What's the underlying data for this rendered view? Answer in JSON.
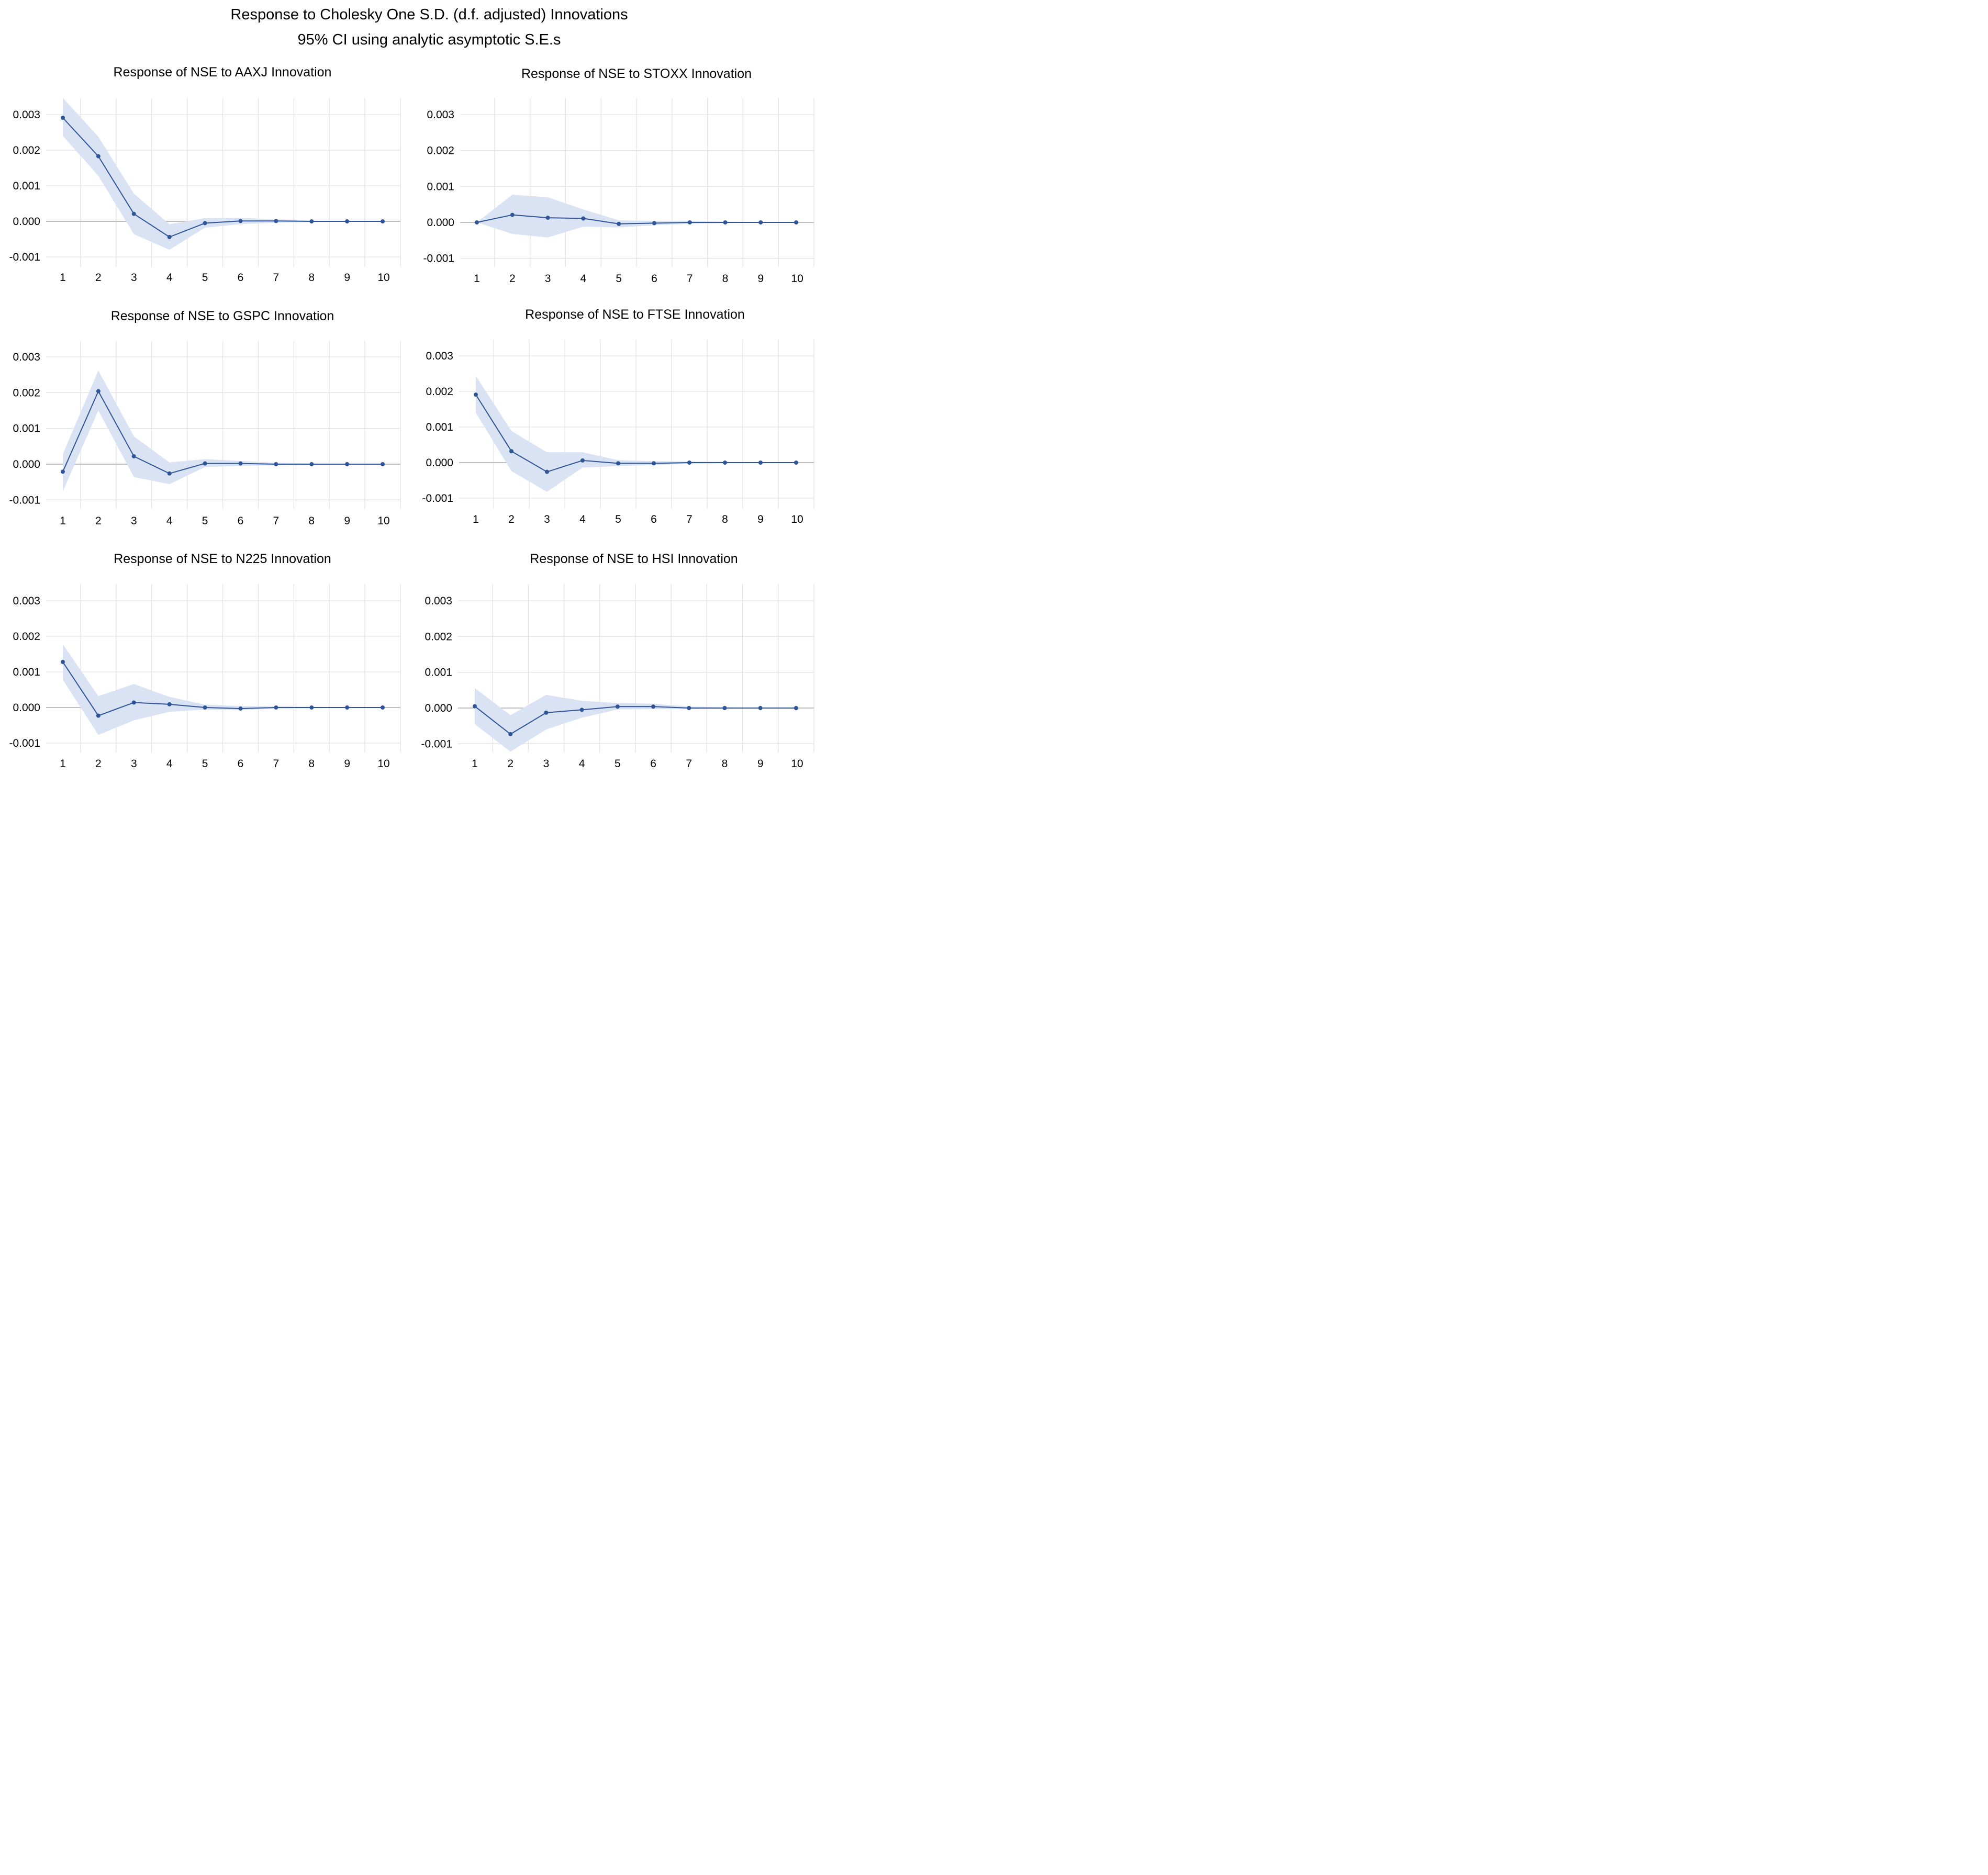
{
  "figure": {
    "title": "Response to Cholesky One S.D. (d.f. adjusted) Innovations",
    "subtitle": "95% CI using analytic asymptotic S.E.s"
  },
  "colors": {
    "line": "#2f5597",
    "band": "#dae3f3",
    "grid": "#e3e3e3",
    "zero_line": "#bfbfbf",
    "text": "#000000"
  },
  "chart_data": [
    {
      "type": "line",
      "title": "Response of NSE to AAXJ Innovation",
      "x": [
        1,
        2,
        3,
        4,
        5,
        6,
        7,
        8,
        9,
        10
      ],
      "ylim": [
        -0.0013,
        0.0035
      ],
      "yticks": [
        "0.003",
        "0.002",
        "0.001",
        "0.000",
        "-0.001"
      ],
      "ytick_values": [
        0.003,
        0.002,
        0.001,
        0.0,
        -0.001
      ],
      "series": [
        {
          "name": "Response",
          "values": [
            0.00291,
            0.00183,
            0.00021,
            -0.00044,
            -5e-05,
            1e-05,
            1e-05,
            0.0,
            0.0,
            0.0
          ]
        },
        {
          "name": "Upper 95% CI",
          "values": [
            0.00347,
            0.00238,
            0.00078,
            -8e-05,
            9e-05,
            0.0001,
            6e-05,
            2e-05,
            1e-05,
            0.0
          ]
        },
        {
          "name": "Lower 95% CI",
          "values": [
            0.0024,
            0.00128,
            -0.00036,
            -0.0008,
            -0.00018,
            -8e-05,
            -4e-05,
            -2e-05,
            -1e-05,
            0.0
          ]
        }
      ]
    },
    {
      "type": "line",
      "title": "Response of NSE to STOXX Innovation",
      "x": [
        1,
        2,
        3,
        4,
        5,
        6,
        7,
        8,
        9,
        10
      ],
      "ylim": [
        -0.0013,
        0.0035
      ],
      "yticks": [
        "0.003",
        "0.002",
        "0.001",
        "0.000",
        "-0.001"
      ],
      "ytick_values": [
        0.003,
        0.002,
        0.001,
        0.0,
        -0.001
      ],
      "series": [
        {
          "name": "Response",
          "values": [
            0.0,
            0.00021,
            0.00013,
            0.00011,
            -4e-05,
            -2e-05,
            0.0,
            0.0,
            0.0,
            0.0
          ]
        },
        {
          "name": "Upper 95% CI",
          "values": [
            0.0,
            0.00077,
            0.0007,
            0.00036,
            6e-05,
            4e-05,
            4e-05,
            2e-05,
            1e-05,
            0.0
          ]
        },
        {
          "name": "Lower 95% CI",
          "values": [
            0.0,
            -0.00032,
            -0.00042,
            -0.00012,
            -0.00014,
            -8e-05,
            -4e-05,
            -2e-05,
            -1e-05,
            0.0
          ]
        }
      ]
    },
    {
      "type": "line",
      "title": "Response of NSE to GSPC Innovation",
      "x": [
        1,
        2,
        3,
        4,
        5,
        6,
        7,
        8,
        9,
        10
      ],
      "ylim": [
        -0.0013,
        0.0035
      ],
      "yticks": [
        "0.003",
        "0.002",
        "0.001",
        "0.000",
        "-0.001"
      ],
      "ytick_values": [
        0.003,
        0.002,
        0.001,
        0.0,
        -0.001
      ],
      "series": [
        {
          "name": "Response",
          "values": [
            -0.00021,
            0.00204,
            0.00022,
            -0.00026,
            2e-05,
            2e-05,
            0.0,
            0.0,
            0.0,
            0.0
          ]
        },
        {
          "name": "Upper 95% CI",
          "values": [
            0.00028,
            0.00262,
            0.00078,
            5e-05,
            0.00014,
            9e-05,
            4e-05,
            2e-05,
            1e-05,
            0.0
          ]
        },
        {
          "name": "Lower 95% CI",
          "values": [
            -0.00076,
            0.0015,
            -0.00036,
            -0.00056,
            -8e-05,
            -5e-05,
            -3e-05,
            -2e-05,
            -1e-05,
            0.0
          ]
        }
      ]
    },
    {
      "type": "line",
      "title": "Response of NSE to FTSE Innovation",
      "x": [
        1,
        2,
        3,
        4,
        5,
        6,
        7,
        8,
        9,
        10
      ],
      "ylim": [
        -0.0013,
        0.0035
      ],
      "yticks": [
        "0.003",
        "0.002",
        "0.001",
        "0.000",
        "-0.001"
      ],
      "ytick_values": [
        0.003,
        0.002,
        0.001,
        0.0,
        -0.001
      ],
      "series": [
        {
          "name": "Response",
          "values": [
            0.00191,
            0.00032,
            -0.00026,
            6e-05,
            -2e-05,
            -2e-05,
            0.0,
            0.0,
            0.0,
            0.0
          ]
        },
        {
          "name": "Upper 95% CI",
          "values": [
            0.00244,
            0.00089,
            0.00029,
            0.00029,
            7e-05,
            4e-05,
            3e-05,
            2e-05,
            1e-05,
            0.0
          ]
        },
        {
          "name": "Lower 95% CI",
          "values": [
            0.0014,
            -0.00024,
            -0.00082,
            -0.00014,
            -0.0001,
            -7e-05,
            -3e-05,
            -2e-05,
            -1e-05,
            0.0
          ]
        }
      ]
    },
    {
      "type": "line",
      "title": "Response of NSE to N225 Innovation",
      "x": [
        1,
        2,
        3,
        4,
        5,
        6,
        7,
        8,
        9,
        10
      ],
      "ylim": [
        -0.0013,
        0.0035
      ],
      "yticks": [
        "0.003",
        "0.002",
        "0.001",
        "0.000",
        "-0.001"
      ],
      "ytick_values": [
        0.003,
        0.002,
        0.001,
        0.0,
        -0.001
      ],
      "series": [
        {
          "name": "Response",
          "values": [
            0.00128,
            -0.00023,
            0.00014,
            9e-05,
            0.0,
            -3e-05,
            0.0,
            0.0,
            0.0,
            0.0
          ]
        },
        {
          "name": "Upper 95% CI",
          "values": [
            0.00178,
            0.00032,
            0.00066,
            0.0003,
            8e-05,
            4e-05,
            3e-05,
            2e-05,
            1e-05,
            0.0
          ]
        },
        {
          "name": "Lower 95% CI",
          "values": [
            0.00078,
            -0.00077,
            -0.00036,
            -0.00012,
            -6e-05,
            -7e-05,
            -3e-05,
            -2e-05,
            -1e-05,
            0.0
          ]
        }
      ]
    },
    {
      "type": "line",
      "title": "Response of NSE to HSI Innovation",
      "x": [
        1,
        2,
        3,
        4,
        5,
        6,
        7,
        8,
        9,
        10
      ],
      "ylim": [
        -0.0013,
        0.0035
      ],
      "yticks": [
        "0.003",
        "0.002",
        "0.001",
        "0.000",
        "-0.001"
      ],
      "ytick_values": [
        0.003,
        0.002,
        0.001,
        0.0,
        -0.001
      ],
      "series": [
        {
          "name": "Response",
          "values": [
            5e-05,
            -0.00073,
            -0.00013,
            -5e-05,
            4e-05,
            4e-05,
            0.0,
            0.0,
            0.0,
            0.0
          ]
        },
        {
          "name": "Upper 95% CI",
          "values": [
            0.00056,
            -0.0002,
            0.00037,
            0.0002,
            0.00014,
            0.00012,
            4e-05,
            2e-05,
            1e-05,
            0.0
          ]
        },
        {
          "name": "Lower 95% CI",
          "values": [
            -0.00045,
            -0.00122,
            -0.0006,
            -0.00027,
            -4e-05,
            -3e-05,
            -3e-05,
            -2e-05,
            -1e-05,
            0.0
          ]
        }
      ]
    }
  ]
}
